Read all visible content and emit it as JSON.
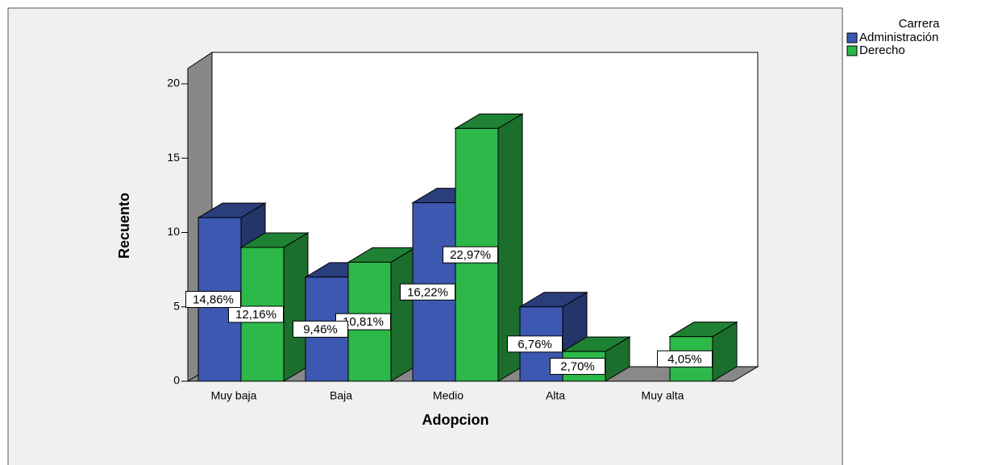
{
  "chart_data": {
    "type": "bar3d",
    "x_label": "Adopcion",
    "y_label": "Recuento",
    "categories": [
      "Muy baja",
      "Baja",
      "Medio",
      "Alta",
      "Muy alta"
    ],
    "series": [
      {
        "name": "Administración",
        "color": "#3c58b0",
        "values": [
          11,
          7,
          12,
          5,
          null
        ],
        "labels": [
          "14,86%",
          "9,46%",
          "16,22%",
          "6,76%",
          null
        ]
      },
      {
        "name": "Derecho",
        "color": "#2db84a",
        "values": [
          9,
          8,
          17,
          2,
          3
        ],
        "labels": [
          "12,16%",
          "10,81%",
          "22,97%",
          "2,70%",
          "4,05%"
        ]
      }
    ],
    "legend_title": "Carrera",
    "ylim": [
      0,
      20
    ],
    "yticks": [
      0,
      5,
      10,
      15,
      20
    ]
  }
}
